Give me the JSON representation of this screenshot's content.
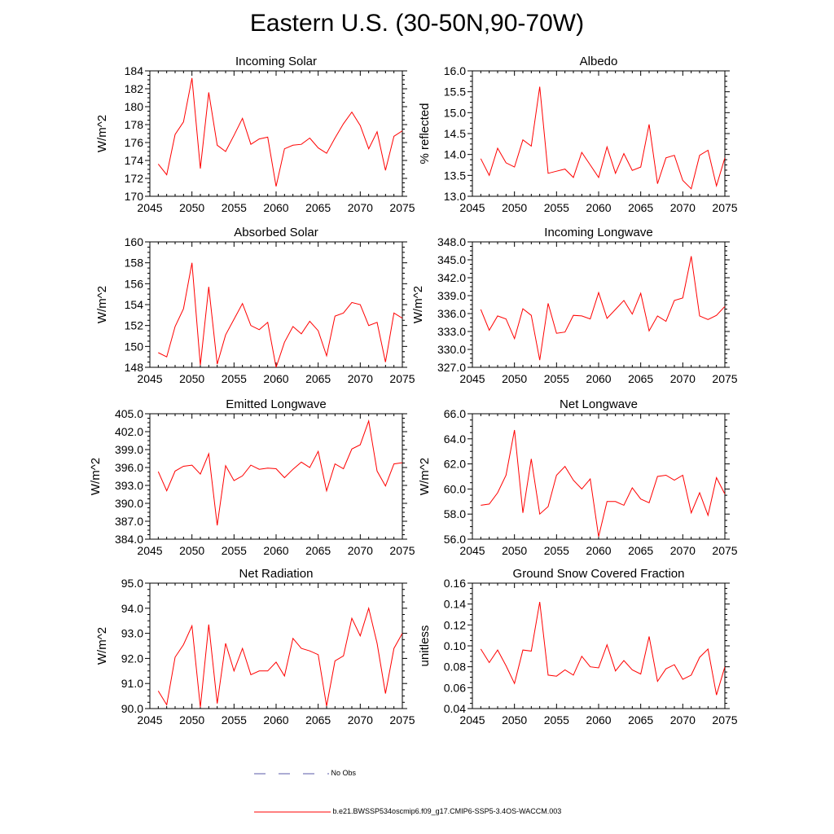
{
  "figure": {
    "title": "Eastern U.S. (30-50N,90-70W)"
  },
  "colors": {
    "model": "#ff0000",
    "obs": "#5a5aaa",
    "axis": "#000000"
  },
  "legend": {
    "obs_label": "No Obs",
    "case_label": "b.e21.BWSSP534oscmip6.f09_g17.CMIP6-SSP5-3.4OS-WACCM.003"
  },
  "chart_data": [
    {
      "id": "incoming-solar",
      "type": "line",
      "title": "Incoming Solar",
      "xlabel": "",
      "ylabel": "W/m^2",
      "xlim": [
        2045,
        2075
      ],
      "ylim": [
        170,
        184
      ],
      "xticks": [
        2045,
        2050,
        2055,
        2060,
        2065,
        2070,
        2075
      ],
      "yticks": [
        "170",
        "172",
        "174",
        "176",
        "178",
        "180",
        "182",
        "184"
      ],
      "x": [
        2046,
        2047,
        2048,
        2049,
        2050,
        2051,
        2052,
        2053,
        2054,
        2055,
        2056,
        2057,
        2058,
        2059,
        2060,
        2061,
        2062,
        2063,
        2064,
        2065,
        2066,
        2067,
        2068,
        2069,
        2070,
        2071,
        2072,
        2073,
        2074,
        2075
      ],
      "values": [
        173.6,
        172.4,
        176.9,
        178.3,
        183.2,
        173.1,
        181.6,
        175.7,
        175.0,
        176.8,
        178.7,
        175.8,
        176.4,
        176.6,
        171.1,
        175.3,
        175.7,
        175.8,
        176.5,
        175.4,
        174.8,
        176.5,
        178.1,
        179.4,
        177.9,
        175.3,
        177.2,
        172.9,
        176.7,
        177.3
      ]
    },
    {
      "id": "albedo",
      "type": "line",
      "title": "Albedo",
      "xlabel": "",
      "ylabel": "% reflected",
      "xlim": [
        2045,
        2075
      ],
      "ylim": [
        13.0,
        16.0
      ],
      "xticks": [
        2045,
        2050,
        2055,
        2060,
        2065,
        2070,
        2075
      ],
      "yticks": [
        "13.0",
        "13.5",
        "14.0",
        "14.5",
        "15.0",
        "15.5",
        "16.0"
      ],
      "x": [
        2046,
        2047,
        2048,
        2049,
        2050,
        2051,
        2052,
        2053,
        2054,
        2055,
        2056,
        2057,
        2058,
        2059,
        2060,
        2061,
        2062,
        2063,
        2064,
        2065,
        2066,
        2067,
        2068,
        2069,
        2070,
        2071,
        2072,
        2073,
        2074,
        2075
      ],
      "values": [
        13.9,
        13.5,
        14.15,
        13.8,
        13.7,
        14.35,
        14.2,
        15.62,
        13.55,
        13.6,
        13.65,
        13.45,
        14.05,
        13.75,
        13.45,
        14.18,
        13.55,
        14.02,
        13.62,
        13.7,
        14.72,
        13.3,
        13.92,
        13.98,
        13.38,
        13.18,
        13.98,
        14.1,
        13.25,
        13.92
      ]
    },
    {
      "id": "absorbed-solar",
      "type": "line",
      "title": "Absorbed Solar",
      "xlabel": "",
      "ylabel": "W/m^2",
      "xlim": [
        2045,
        2075
      ],
      "ylim": [
        148,
        160
      ],
      "xticks": [
        2045,
        2050,
        2055,
        2060,
        2065,
        2070,
        2075
      ],
      "yticks": [
        "148",
        "150",
        "152",
        "154",
        "156",
        "158",
        "160"
      ],
      "x": [
        2046,
        2047,
        2048,
        2049,
        2050,
        2051,
        2052,
        2053,
        2054,
        2055,
        2056,
        2057,
        2058,
        2059,
        2060,
        2061,
        2062,
        2063,
        2064,
        2065,
        2066,
        2067,
        2068,
        2069,
        2070,
        2071,
        2072,
        2073,
        2074,
        2075
      ],
      "values": [
        149.4,
        149.0,
        151.9,
        153.6,
        158.0,
        148.2,
        155.7,
        148.3,
        151.1,
        152.6,
        154.1,
        152.0,
        151.6,
        152.3,
        148.0,
        150.4,
        151.9,
        151.2,
        152.4,
        151.5,
        149.1,
        152.9,
        153.2,
        154.2,
        154.0,
        152.0,
        152.3,
        148.5,
        153.2,
        152.7
      ]
    },
    {
      "id": "incoming-longwave",
      "type": "line",
      "title": "Incoming Longwave",
      "xlabel": "",
      "ylabel": "W/m^2",
      "xlim": [
        2045,
        2075
      ],
      "ylim": [
        327.0,
        348.0
      ],
      "xticks": [
        2045,
        2050,
        2055,
        2060,
        2065,
        2070,
        2075
      ],
      "yticks": [
        "327.0",
        "330.0",
        "333.0",
        "336.0",
        "339.0",
        "342.0",
        "345.0",
        "348.0"
      ],
      "x": [
        2046,
        2047,
        2048,
        2049,
        2050,
        2051,
        2052,
        2053,
        2054,
        2055,
        2056,
        2057,
        2058,
        2059,
        2060,
        2061,
        2062,
        2063,
        2064,
        2065,
        2066,
        2067,
        2068,
        2069,
        2070,
        2071,
        2072,
        2073,
        2074,
        2075
      ],
      "values": [
        336.7,
        333.2,
        335.6,
        335.1,
        331.8,
        336.8,
        335.7,
        328.2,
        337.7,
        332.7,
        332.9,
        335.7,
        335.6,
        335.1,
        339.5,
        335.2,
        336.7,
        338.2,
        335.9,
        339.4,
        333.1,
        335.6,
        334.7,
        338.2,
        338.6,
        345.6,
        335.6,
        335.0,
        335.7,
        337.2
      ]
    },
    {
      "id": "emitted-longwave",
      "type": "line",
      "title": "Emitted Longwave",
      "xlabel": "",
      "ylabel": "W/m^2",
      "xlim": [
        2045,
        2075
      ],
      "ylim": [
        384.0,
        405.0
      ],
      "xticks": [
        2045,
        2050,
        2055,
        2060,
        2065,
        2070,
        2075
      ],
      "yticks": [
        "384.0",
        "387.0",
        "390.0",
        "393.0",
        "396.0",
        "399.0",
        "402.0",
        "405.0"
      ],
      "x": [
        2046,
        2047,
        2048,
        2049,
        2050,
        2051,
        2052,
        2053,
        2054,
        2055,
        2056,
        2057,
        2058,
        2059,
        2060,
        2061,
        2062,
        2063,
        2064,
        2065,
        2066,
        2067,
        2068,
        2069,
        2070,
        2071,
        2072,
        2073,
        2074,
        2075
      ],
      "values": [
        395.3,
        392.1,
        395.4,
        396.2,
        396.4,
        394.9,
        398.3,
        386.3,
        396.3,
        393.8,
        394.6,
        396.4,
        395.7,
        395.9,
        395.8,
        394.3,
        395.7,
        396.9,
        396.0,
        398.7,
        392.1,
        396.6,
        395.8,
        399.1,
        399.8,
        403.8,
        395.4,
        392.9,
        396.6,
        396.8
      ]
    },
    {
      "id": "net-longwave",
      "type": "line",
      "title": "Net Longwave",
      "xlabel": "",
      "ylabel": "W/m^2",
      "xlim": [
        2045,
        2075
      ],
      "ylim": [
        56.0,
        66.0
      ],
      "xticks": [
        2045,
        2050,
        2055,
        2060,
        2065,
        2070,
        2075
      ],
      "yticks": [
        "56.0",
        "58.0",
        "60.0",
        "62.0",
        "64.0",
        "66.0"
      ],
      "x": [
        2046,
        2047,
        2048,
        2049,
        2050,
        2051,
        2052,
        2053,
        2054,
        2055,
        2056,
        2057,
        2058,
        2059,
        2060,
        2061,
        2062,
        2063,
        2064,
        2065,
        2066,
        2067,
        2068,
        2069,
        2070,
        2071,
        2072,
        2073,
        2074,
        2075
      ],
      "values": [
        58.7,
        58.8,
        59.7,
        61.1,
        64.7,
        58.1,
        62.4,
        58.0,
        58.6,
        61.1,
        61.8,
        60.7,
        60.0,
        60.8,
        56.2,
        59.0,
        59.0,
        58.7,
        60.1,
        59.2,
        58.9,
        61.0,
        61.1,
        60.7,
        61.1,
        58.1,
        59.7,
        57.9,
        60.9,
        59.6
      ]
    },
    {
      "id": "net-radiation",
      "type": "line",
      "title": "Net Radiation",
      "xlabel": "",
      "ylabel": "W/m^2",
      "xlim": [
        2045,
        2075
      ],
      "ylim": [
        90.0,
        95.0
      ],
      "xticks": [
        2045,
        2050,
        2055,
        2060,
        2065,
        2070,
        2075
      ],
      "yticks": [
        "90.0",
        "91.0",
        "92.0",
        "93.0",
        "94.0",
        "95.0"
      ],
      "x": [
        2046,
        2047,
        2048,
        2049,
        2050,
        2051,
        2052,
        2053,
        2054,
        2055,
        2056,
        2057,
        2058,
        2059,
        2060,
        2061,
        2062,
        2063,
        2064,
        2065,
        2066,
        2067,
        2068,
        2069,
        2070,
        2071,
        2072,
        2073,
        2074,
        2075
      ],
      "values": [
        90.7,
        90.15,
        92.05,
        92.55,
        93.3,
        90.05,
        93.35,
        90.2,
        92.6,
        91.5,
        92.4,
        91.35,
        91.5,
        91.5,
        91.85,
        91.3,
        92.8,
        92.4,
        92.3,
        92.15,
        90.1,
        91.9,
        92.1,
        93.6,
        92.9,
        94.0,
        92.6,
        90.6,
        92.4,
        93.0
      ]
    },
    {
      "id": "ground-snow-covered-fraction",
      "type": "line",
      "title": "Ground Snow Covered Fraction",
      "xlabel": "",
      "ylabel": "unitless",
      "xlim": [
        2045,
        2075
      ],
      "ylim": [
        0.04,
        0.16
      ],
      "xticks": [
        2045,
        2050,
        2055,
        2060,
        2065,
        2070,
        2075
      ],
      "yticks": [
        "0.04",
        "0.06",
        "0.08",
        "0.10",
        "0.12",
        "0.14",
        "0.16"
      ],
      "x": [
        2046,
        2047,
        2048,
        2049,
        2050,
        2051,
        2052,
        2053,
        2054,
        2055,
        2056,
        2057,
        2058,
        2059,
        2060,
        2061,
        2062,
        2063,
        2064,
        2065,
        2066,
        2067,
        2068,
        2069,
        2070,
        2071,
        2072,
        2073,
        2074,
        2075
      ],
      "values": [
        0.097,
        0.084,
        0.096,
        0.081,
        0.064,
        0.096,
        0.095,
        0.142,
        0.072,
        0.071,
        0.077,
        0.072,
        0.09,
        0.08,
        0.079,
        0.101,
        0.076,
        0.086,
        0.077,
        0.073,
        0.109,
        0.066,
        0.078,
        0.082,
        0.068,
        0.072,
        0.089,
        0.097,
        0.053,
        0.08
      ]
    }
  ]
}
